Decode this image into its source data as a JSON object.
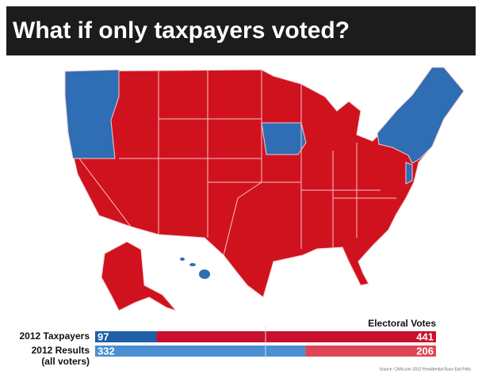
{
  "title": "What if only taxpayers voted?",
  "chart_data": {
    "type": "bar",
    "orientation": "horizontal",
    "stacked": true,
    "title": "Electoral Votes",
    "categories": [
      "2012 Taxpayers",
      "2012 Results"
    ],
    "category_sublabels": [
      null,
      "(all voters)"
    ],
    "xlim": [
      0,
      538
    ],
    "reference_line": 269,
    "series": [
      {
        "colors": [
          "#1f5fa8",
          "#4a8fd2"
        ],
        "values": [
          97,
          332
        ]
      },
      {
        "colors": [
          "#c8102e",
          "#de4656"
        ],
        "values": [
          441,
          206
        ]
      }
    ],
    "source": "Source: CNN.com 2012 Presidential Race Exit Polls"
  }
}
